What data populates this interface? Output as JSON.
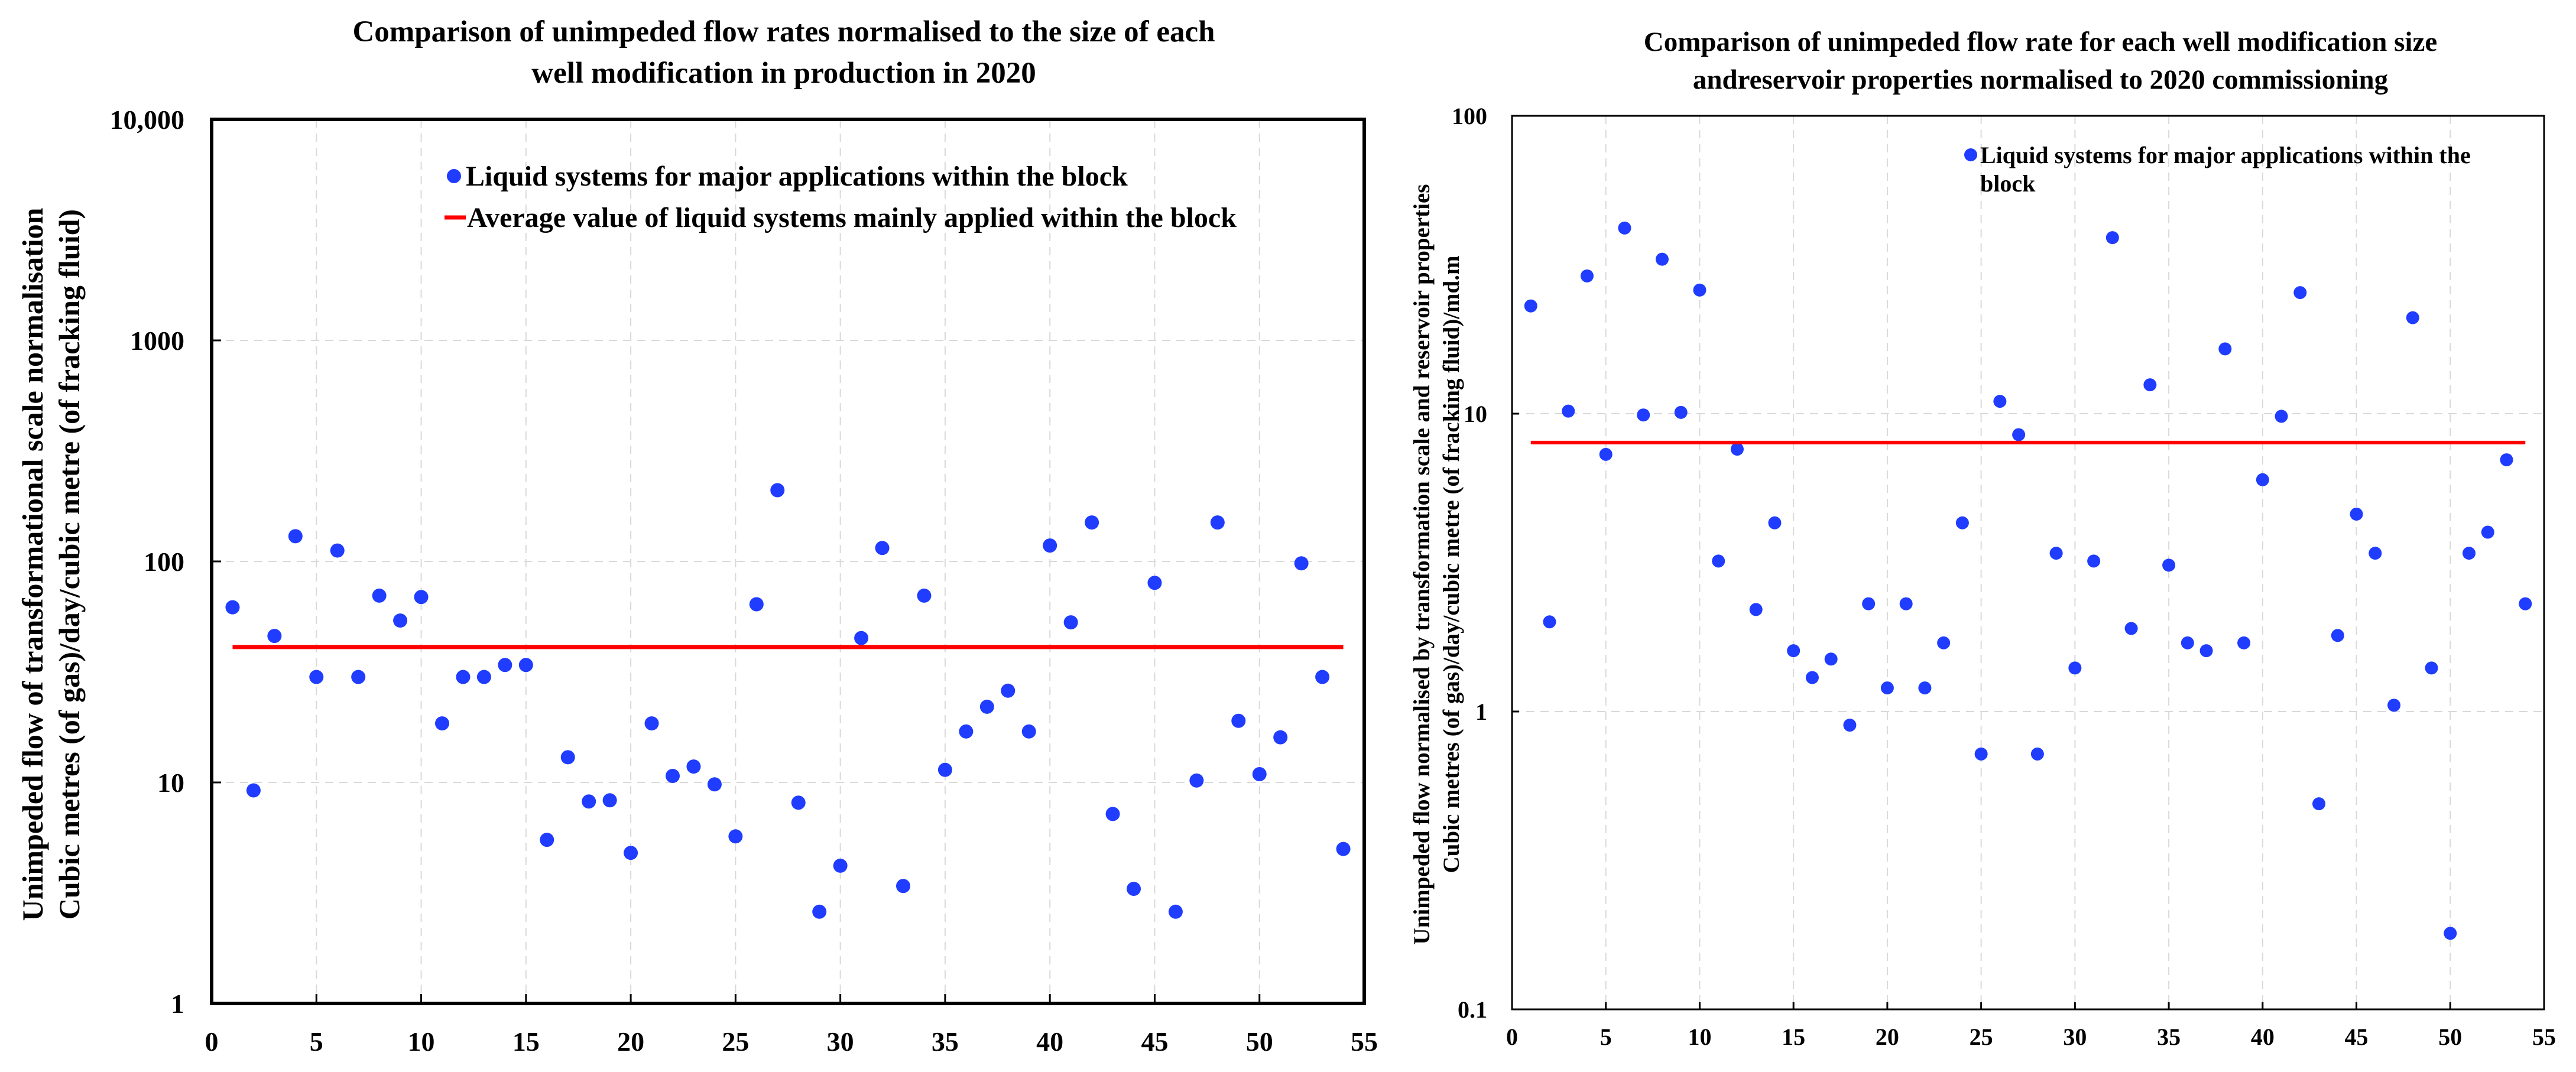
{
  "chart_data": [
    {
      "type": "scatter",
      "title_lines": [
        "Comparison of unimpeded flow rates normalised to the size of each",
        "well modification in production in 2020"
      ],
      "ylabel_lines": [
        "Unimpeded flow of transformational scale normalisation",
        "Cubic metres (of gas)/day/cubic metre (of fracking fluid)"
      ],
      "xlabel": "",
      "y_scale": "log",
      "xlim": [
        0,
        55
      ],
      "ylim": [
        1,
        10000
      ],
      "x_ticks": [
        0,
        5,
        10,
        15,
        20,
        25,
        30,
        35,
        40,
        45,
        50,
        55
      ],
      "y_ticks": [
        1,
        10,
        100,
        1000,
        10000
      ],
      "y_tick_labels": [
        "1",
        "10",
        "100",
        "1000",
        "10,000"
      ],
      "grid": true,
      "legend_position": "top-right",
      "colors": {
        "points": "#1f3cff",
        "average": "#ff0000"
      },
      "series": [
        {
          "name": "Liquid systems for major applications within the block",
          "kind": "points",
          "x": [
            1,
            2,
            3,
            4,
            5,
            6,
            7,
            8,
            9,
            10,
            11,
            12,
            13,
            14,
            15,
            16,
            17,
            18,
            19,
            20,
            21,
            22,
            23,
            24,
            25,
            26,
            27,
            28,
            29,
            30,
            31,
            32,
            33,
            34,
            35,
            36,
            37,
            38,
            39,
            40,
            41,
            42,
            43,
            44,
            45,
            46,
            47,
            48,
            49,
            50,
            51,
            52,
            53,
            54
          ],
          "y": [
            62,
            9.2,
            46,
            130,
            30,
            112,
            30,
            70,
            54,
            69,
            18.5,
            30,
            30,
            34,
            34,
            5.5,
            13,
            8.2,
            8.3,
            4.8,
            18.5,
            10.7,
            11.8,
            9.8,
            5.7,
            64,
            210,
            8.1,
            2.6,
            4.2,
            45,
            115,
            3.4,
            70,
            11.4,
            17,
            22,
            26,
            17,
            118,
            53,
            150,
            7.2,
            3.3,
            80,
            2.6,
            10.2,
            150,
            19,
            10.9,
            16,
            98,
            30,
            5
          ]
        },
        {
          "name": "Average value of liquid systems mainly applied within the block",
          "kind": "line",
          "x": [
            1,
            54
          ],
          "y": [
            41,
            41
          ]
        }
      ]
    },
    {
      "type": "scatter",
      "title_lines": [
        "Comparison of unimpeded flow rate for each well modification size",
        "andreservoir properties normalised to 2020 commissioning"
      ],
      "ylabel_lines": [
        "Unimpeded flow normalised by transformation scale and reservoir properties",
        "Cubic metres (of gas)/day/cubic metre (of fracking fluid)/md.m"
      ],
      "xlabel": "",
      "y_scale": "log",
      "xlim": [
        0,
        55
      ],
      "ylim": [
        0.1,
        100
      ],
      "x_ticks": [
        0,
        5,
        10,
        15,
        20,
        25,
        30,
        35,
        40,
        45,
        50,
        55
      ],
      "y_ticks": [
        0.1,
        1,
        10,
        100
      ],
      "y_tick_labels": [
        "0.1",
        "1",
        "10",
        "100"
      ],
      "grid": true,
      "legend_position": "top-right",
      "colors": {
        "points": "#1f3cff",
        "average": "#ff0000"
      },
      "series": [
        {
          "name": "Liquid systems for major applications within the block",
          "legend_lines": [
            "Liquid systems for major applications within the",
            "block"
          ],
          "kind": "points",
          "x": [
            1,
            2,
            3,
            4,
            5,
            6,
            7,
            8,
            9,
            10,
            11,
            12,
            13,
            14,
            15,
            16,
            17,
            18,
            19,
            20,
            21,
            22,
            23,
            24,
            25,
            26,
            27,
            28,
            29,
            30,
            31,
            32,
            33,
            34,
            35,
            36,
            37,
            38,
            39,
            40,
            41,
            42,
            43,
            44,
            45,
            46,
            47,
            48,
            49,
            50,
            51,
            52,
            53,
            54
          ],
          "y": [
            23,
            2,
            10.2,
            29,
            7.3,
            42,
            9.9,
            33,
            10.1,
            26,
            3.2,
            7.6,
            2.2,
            4.3,
            1.6,
            1.3,
            1.5,
            0.9,
            2.3,
            1.2,
            2.3,
            1.2,
            1.7,
            4.3,
            0.72,
            11,
            8.5,
            0.72,
            3.4,
            1.4,
            3.2,
            39,
            1.9,
            12.5,
            3.1,
            1.7,
            1.6,
            16.5,
            1.7,
            6,
            9.8,
            25.5,
            0.49,
            1.8,
            4.6,
            3.4,
            1.05,
            21,
            1.4,
            0.18,
            3.4,
            4,
            7,
            2.3
          ]
        },
        {
          "kind": "line",
          "x": [
            1,
            54
          ],
          "y": [
            8,
            8
          ]
        }
      ]
    }
  ]
}
